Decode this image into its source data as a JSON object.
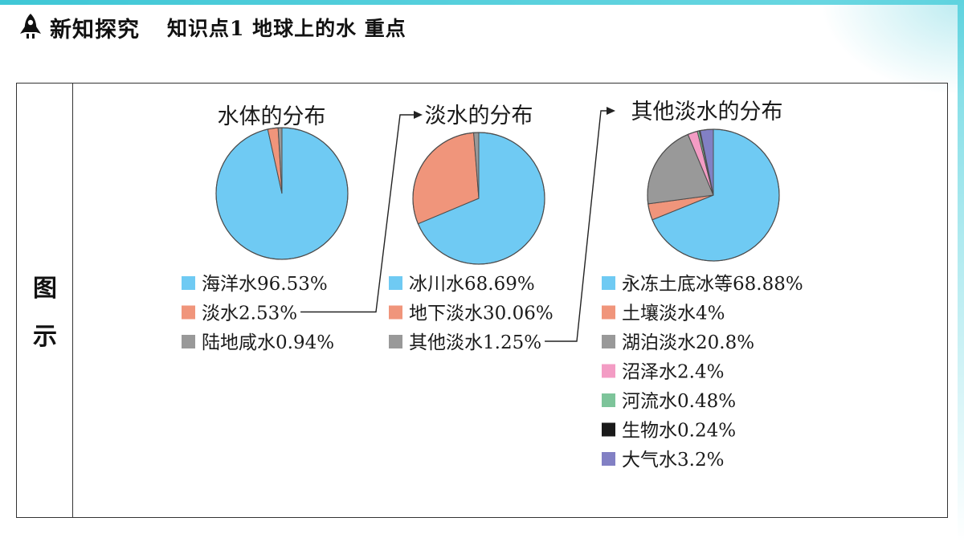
{
  "header": {
    "title": "新知探究",
    "subtitle": "知识点1  地球上的水  重点"
  },
  "side_label": [
    "图",
    "示"
  ],
  "colors": {
    "cyan": "#6fcaf3",
    "salmon": "#f0957b",
    "gray": "#999999",
    "pink": "#f39cc4",
    "green": "#7dc49a",
    "black": "#1a1a1a",
    "purple": "#8280c4"
  },
  "chart_data": [
    {
      "type": "pie",
      "title": "水体的分布",
      "slices": [
        {
          "label": "海洋水96.53%",
          "value": 96.53,
          "color": "#6fcaf3"
        },
        {
          "label": "淡水2.53%",
          "value": 2.53,
          "color": "#f0957b"
        },
        {
          "label": "陆地咸水0.94%",
          "value": 0.94,
          "color": "#999999"
        }
      ]
    },
    {
      "type": "pie",
      "title": "淡水的分布",
      "slices": [
        {
          "label": "冰川水68.69%",
          "value": 68.69,
          "color": "#6fcaf3"
        },
        {
          "label": "地下淡水30.06%",
          "value": 30.06,
          "color": "#f0957b"
        },
        {
          "label": "其他淡水1.25%",
          "value": 1.25,
          "color": "#999999"
        }
      ]
    },
    {
      "type": "pie",
      "title": "其他淡水的分布",
      "slices": [
        {
          "label": "永冻土底冰等68.88%",
          "value": 68.88,
          "color": "#6fcaf3"
        },
        {
          "label": "土壤淡水4%",
          "value": 4,
          "color": "#f0957b"
        },
        {
          "label": "湖泊淡水20.8%",
          "value": 20.8,
          "color": "#999999"
        },
        {
          "label": "沼泽水2.4%",
          "value": 2.4,
          "color": "#f39cc4"
        },
        {
          "label": "河流水0.48%",
          "value": 0.48,
          "color": "#7dc49a"
        },
        {
          "label": "生物水0.24%",
          "value": 0.24,
          "color": "#1a1a1a"
        },
        {
          "label": "大气水3.2%",
          "value": 3.2,
          "color": "#8280c4"
        }
      ]
    }
  ]
}
